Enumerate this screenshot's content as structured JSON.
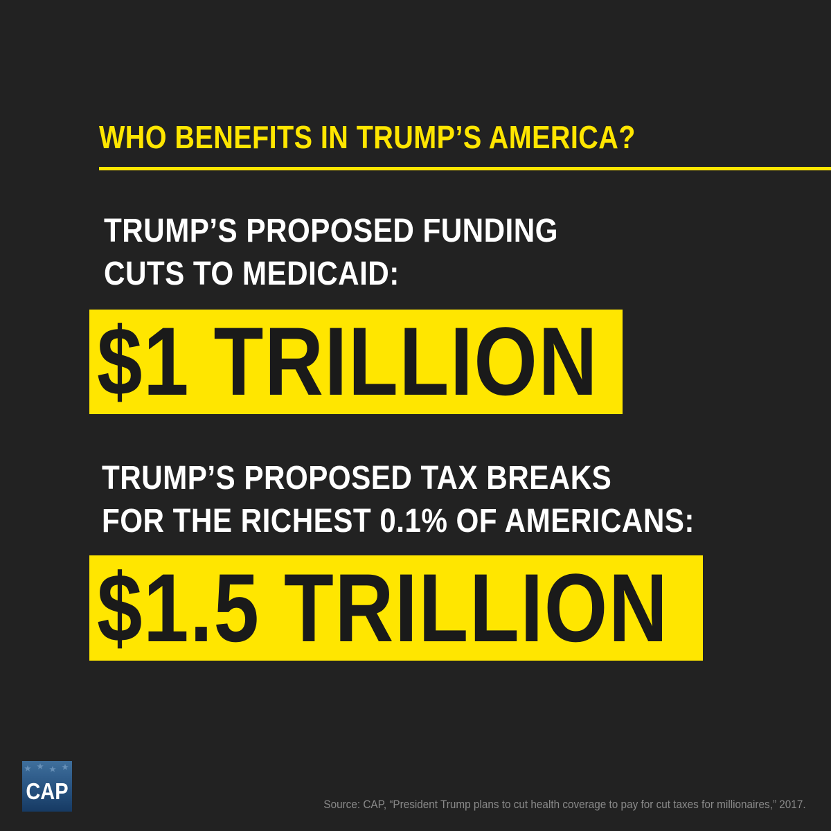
{
  "headline": "WHO BENEFITS IN TRUMP’S AMERICA?",
  "medicaid": {
    "label_line1": "TRUMP’S PROPOSED FUNDING",
    "label_line2": "CUTS TO MEDICAID:",
    "amount": "$1 TRILLION"
  },
  "tax_breaks": {
    "label_line1": "TRUMP’S PROPOSED TAX BREAKS",
    "label_line2": "FOR THE RICHEST 0.1% OF AMERICANS:",
    "amount": "$1.5 TRILLION"
  },
  "logo": {
    "text": "CAP"
  },
  "source": "Source: CAP, “President Trump plans to cut health coverage to pay for cut taxes for millionaires,” 2017.",
  "colors": {
    "background": "#222222",
    "accent_yellow": "#ffe600",
    "text_white": "#ffffff",
    "amount_text": "#1a1a1a",
    "logo_blue": "#2b5785",
    "source_gray": "#8a8a8a"
  }
}
